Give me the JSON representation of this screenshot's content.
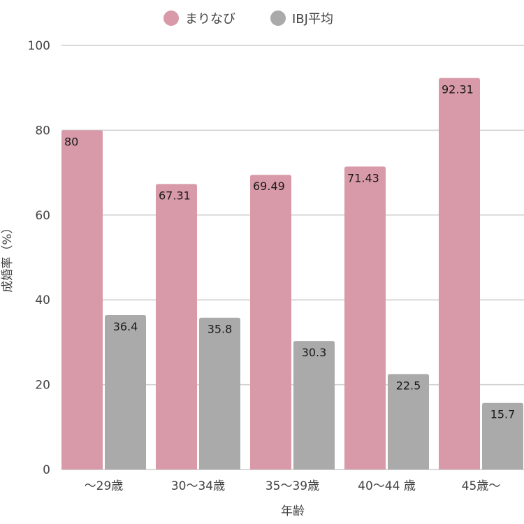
{
  "chart_data": {
    "type": "bar",
    "categories": [
      "～29歳",
      "30～34歳",
      "35～39歳",
      "40～44 歳",
      "45歳～"
    ],
    "series": [
      {
        "name": "まりなび",
        "color": "#d89aa8",
        "values": [
          80,
          67.31,
          69.49,
          71.43,
          92.31
        ]
      },
      {
        "name": "IBJ平均",
        "color": "#aaaaaa",
        "values": [
          36.4,
          35.8,
          30.3,
          22.5,
          15.7
        ]
      }
    ],
    "ylim": [
      0,
      100
    ],
    "yticks": [
      0,
      20,
      40,
      60,
      80,
      100
    ],
    "xlabel": "年齢",
    "ylabel": "成婚率（%）",
    "legend_position": "top-center",
    "grid": true,
    "grid_color": "#cccccc"
  }
}
